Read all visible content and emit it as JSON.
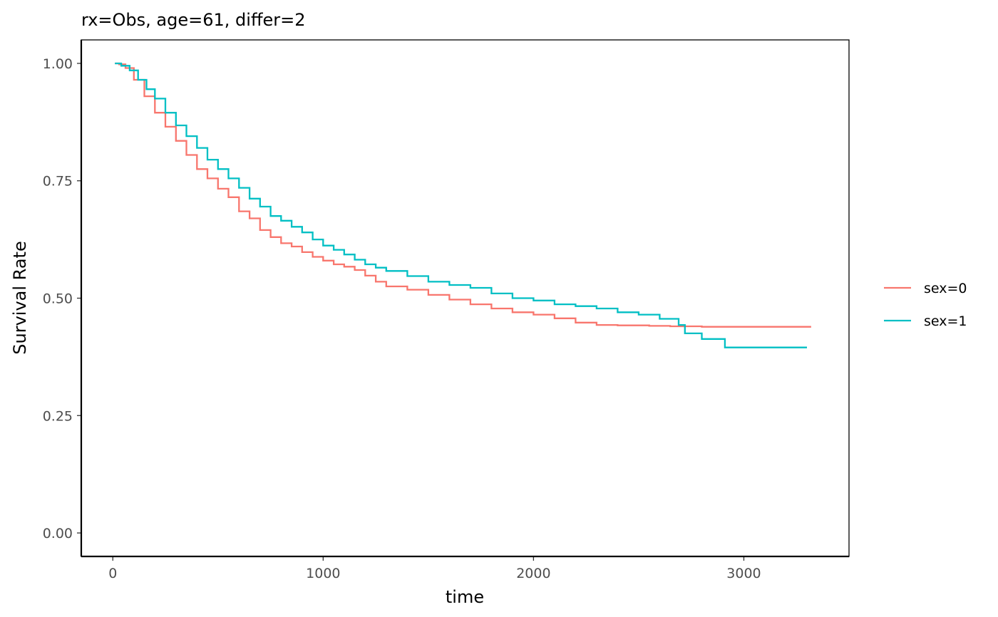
{
  "chart_data": {
    "type": "line",
    "step": true,
    "title": "rx=Obs, age=61, differ=2",
    "xlabel": "time",
    "ylabel": "Survival Rate",
    "xlim": [
      -150,
      3500
    ],
    "ylim": [
      -0.05,
      1.05
    ],
    "xticks": [
      0,
      1000,
      2000,
      3000
    ],
    "xtick_labels": [
      "0",
      "1000",
      "2000",
      "3000"
    ],
    "yticks": [
      0,
      0.25,
      0.5,
      0.75,
      1.0
    ],
    "ytick_labels": [
      "0.00",
      "0.25",
      "0.50",
      "0.75",
      "1.00"
    ],
    "grid": false,
    "legend_position": "right",
    "series": [
      {
        "name": "sex=0",
        "color": "#F8766D",
        "x": [
          10,
          30,
          60,
          100,
          150,
          200,
          250,
          300,
          350,
          400,
          450,
          500,
          550,
          600,
          650,
          700,
          750,
          800,
          850,
          900,
          950,
          1000,
          1050,
          1100,
          1150,
          1200,
          1250,
          1300,
          1400,
          1500,
          1600,
          1700,
          1800,
          1900,
          2000,
          2100,
          2200,
          2300,
          2400,
          2550,
          2650,
          2700,
          2800,
          3000,
          3320
        ],
        "values": [
          1.0,
          0.998,
          0.99,
          0.965,
          0.93,
          0.895,
          0.865,
          0.835,
          0.805,
          0.775,
          0.755,
          0.733,
          0.715,
          0.685,
          0.67,
          0.645,
          0.63,
          0.617,
          0.61,
          0.598,
          0.588,
          0.58,
          0.572,
          0.567,
          0.56,
          0.548,
          0.535,
          0.525,
          0.518,
          0.507,
          0.497,
          0.487,
          0.478,
          0.47,
          0.465,
          0.457,
          0.448,
          0.443,
          0.442,
          0.441,
          0.44,
          0.44,
          0.439,
          0.439,
          0.439
        ]
      },
      {
        "name": "sex=1",
        "color": "#00BFC4",
        "x": [
          10,
          40,
          80,
          120,
          160,
          200,
          250,
          300,
          350,
          400,
          450,
          500,
          550,
          600,
          650,
          700,
          750,
          800,
          850,
          900,
          950,
          1000,
          1050,
          1100,
          1150,
          1200,
          1250,
          1300,
          1400,
          1500,
          1600,
          1700,
          1800,
          1900,
          2000,
          2100,
          2200,
          2300,
          2400,
          2500,
          2600,
          2690,
          2720,
          2800,
          2910,
          3300
        ],
        "values": [
          1.0,
          0.995,
          0.985,
          0.965,
          0.945,
          0.925,
          0.895,
          0.868,
          0.845,
          0.82,
          0.795,
          0.775,
          0.755,
          0.735,
          0.712,
          0.695,
          0.675,
          0.665,
          0.652,
          0.64,
          0.625,
          0.612,
          0.603,
          0.593,
          0.582,
          0.572,
          0.565,
          0.558,
          0.547,
          0.535,
          0.528,
          0.522,
          0.51,
          0.5,
          0.495,
          0.487,
          0.483,
          0.478,
          0.47,
          0.465,
          0.456,
          0.443,
          0.425,
          0.413,
          0.395,
          0.395
        ]
      }
    ]
  }
}
